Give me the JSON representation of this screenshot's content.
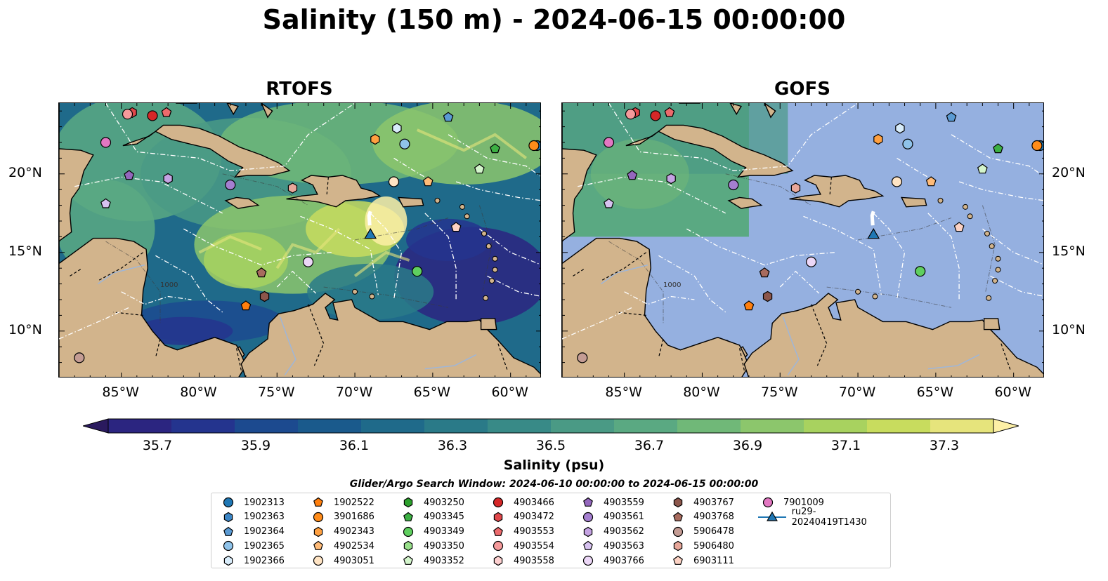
{
  "title": "Salinity (150 m) - 2024-06-15 00:00:00",
  "panels": [
    {
      "title": "RTOFS",
      "model": "rtofs"
    },
    {
      "title": "GOFS",
      "model": "gofs"
    }
  ],
  "map": {
    "lon_range": [
      -89,
      -58
    ],
    "lat_range": [
      7,
      24.5
    ],
    "lon_ticks": [
      "85°W",
      "80°W",
      "75°W",
      "70°W",
      "65°W",
      "60°W"
    ],
    "lat_ticks": [
      "20°N",
      "15°N",
      "10°N"
    ],
    "contour_label": "1000",
    "colors": {
      "land": "#d2b48c",
      "ocean_fill": "#95b0e0",
      "eez_lines": "#ffffff"
    }
  },
  "colorbar": {
    "label": "Salinity (psu)",
    "min": 35.6,
    "max": 37.4,
    "ticks": [
      "35.7",
      "35.9",
      "36.1",
      "36.3",
      "36.5",
      "36.7",
      "36.9",
      "37.1",
      "37.3"
    ],
    "palette": [
      "#2a1a5e",
      "#2b2580",
      "#24348e",
      "#1c4a8f",
      "#1a5a8c",
      "#1f6a8a",
      "#2a7a88",
      "#388a87",
      "#4a9a85",
      "#5aa982",
      "#70b878",
      "#8cc66c",
      "#a8d25f",
      "#c8dc5e",
      "#e6e47c",
      "#fdf0a6"
    ],
    "extend": "both"
  },
  "search_window": "Glider/Argo Search Window: 2024-06-10 00:00:00 to 2024-06-15 00:00:00",
  "legend": [
    {
      "id": "1902313",
      "marker": "circle",
      "color": "#1f77b4"
    },
    {
      "id": "1902363",
      "marker": "hexagon",
      "color": "#3b85c5"
    },
    {
      "id": "1902364",
      "marker": "pentagon",
      "color": "#5a9ad3"
    },
    {
      "id": "1902365",
      "marker": "circle",
      "color": "#8fc3ea"
    },
    {
      "id": "1902366",
      "marker": "hexagon",
      "color": "#d8ecfa"
    },
    {
      "id": "1902522",
      "marker": "pentagon",
      "color": "#ff7f0e"
    },
    {
      "id": "3901686",
      "marker": "circle",
      "color": "#ff8c1a"
    },
    {
      "id": "4902343",
      "marker": "hexagon",
      "color": "#ffa040"
    },
    {
      "id": "4902534",
      "marker": "pentagon",
      "color": "#ffbb78"
    },
    {
      "id": "4903051",
      "marker": "circle",
      "color": "#ffe4c4"
    },
    {
      "id": "4903250",
      "marker": "hexagon",
      "color": "#2ca02c"
    },
    {
      "id": "4903345",
      "marker": "pentagon",
      "color": "#3cb043"
    },
    {
      "id": "4903349",
      "marker": "circle",
      "color": "#5fcf5f"
    },
    {
      "id": "4903350",
      "marker": "hexagon",
      "color": "#98df8a"
    },
    {
      "id": "4903352",
      "marker": "pentagon",
      "color": "#d4f5cc"
    },
    {
      "id": "4903466",
      "marker": "circle",
      "color": "#d62728"
    },
    {
      "id": "4903472",
      "marker": "hexagon",
      "color": "#e0474a"
    },
    {
      "id": "4903553",
      "marker": "pentagon",
      "color": "#ec6a6c"
    },
    {
      "id": "4903554",
      "marker": "circle",
      "color": "#f59a9b"
    },
    {
      "id": "4903558",
      "marker": "hexagon",
      "color": "#fdd0d0"
    },
    {
      "id": "4903559",
      "marker": "pentagon",
      "color": "#9467bd"
    },
    {
      "id": "4903561",
      "marker": "circle",
      "color": "#a57fd0"
    },
    {
      "id": "4903562",
      "marker": "hexagon",
      "color": "#c5a3e3"
    },
    {
      "id": "4903563",
      "marker": "pentagon",
      "color": "#d7c2f0"
    },
    {
      "id": "4903766",
      "marker": "circle",
      "color": "#ecd7f7"
    },
    {
      "id": "4903767",
      "marker": "hexagon",
      "color": "#8c564b"
    },
    {
      "id": "4903768",
      "marker": "pentagon",
      "color": "#a86b5e"
    },
    {
      "id": "5906478",
      "marker": "circle",
      "color": "#c49c94"
    },
    {
      "id": "5906480",
      "marker": "hexagon",
      "color": "#e8a79a"
    },
    {
      "id": "6903111",
      "marker": "pentagon",
      "color": "#fcd2c4"
    },
    {
      "id": "7901009",
      "marker": "circle",
      "color": "#e377c2"
    },
    {
      "id": "ru29-20240419T1430",
      "marker": "triangle-line",
      "color": "#1f77b4"
    }
  ],
  "floats": [
    {
      "id": "1902313",
      "lon": -58.3,
      "lat": 21.8
    },
    {
      "id": "1902364",
      "lon": -64.0,
      "lat": 23.6
    },
    {
      "id": "1902365",
      "lon": -66.8,
      "lat": 21.9
    },
    {
      "id": "1902366",
      "lon": -67.3,
      "lat": 22.9
    },
    {
      "id": "1902522",
      "lon": -77.0,
      "lat": 11.6
    },
    {
      "id": "3901686",
      "lon": -58.5,
      "lat": 21.8
    },
    {
      "id": "4902343",
      "lon": -68.7,
      "lat": 22.2
    },
    {
      "id": "4902534",
      "lon": -65.3,
      "lat": 19.5
    },
    {
      "id": "4903051",
      "lon": -67.5,
      "lat": 19.5
    },
    {
      "id": "4903345",
      "lon": -61.0,
      "lat": 21.6
    },
    {
      "id": "4903349",
      "lon": -66.0,
      "lat": 13.8
    },
    {
      "id": "4903352",
      "lon": -62.0,
      "lat": 20.3
    },
    {
      "id": "4903466",
      "lon": -83.0,
      "lat": 23.7
    },
    {
      "id": "4903472",
      "lon": -84.3,
      "lat": 23.9
    },
    {
      "id": "4903553",
      "lon": -82.1,
      "lat": 23.9
    },
    {
      "id": "4903554",
      "lon": -84.6,
      "lat": 23.8
    },
    {
      "id": "4903559",
      "lon": -84.5,
      "lat": 19.9
    },
    {
      "id": "4903561",
      "lon": -78.0,
      "lat": 19.3
    },
    {
      "id": "4903562",
      "lon": -82.0,
      "lat": 19.7
    },
    {
      "id": "4903563",
      "lon": -86.0,
      "lat": 18.1
    },
    {
      "id": "4903766",
      "lon": -73.0,
      "lat": 14.4
    },
    {
      "id": "4903767",
      "lon": -75.8,
      "lat": 12.2
    },
    {
      "id": "4903768",
      "lon": -76.0,
      "lat": 13.7
    },
    {
      "id": "5906478",
      "lon": -87.7,
      "lat": 8.3
    },
    {
      "id": "6903111",
      "lon": -63.5,
      "lat": 16.6
    },
    {
      "id": "5906480",
      "lon": -74.0,
      "lat": 19.1
    },
    {
      "id": "7901009",
      "lon": -86.0,
      "lat": 22.0
    }
  ],
  "glider": {
    "id": "ru29-20240419T1430",
    "lon": -69.0,
    "lat": 16.1
  }
}
